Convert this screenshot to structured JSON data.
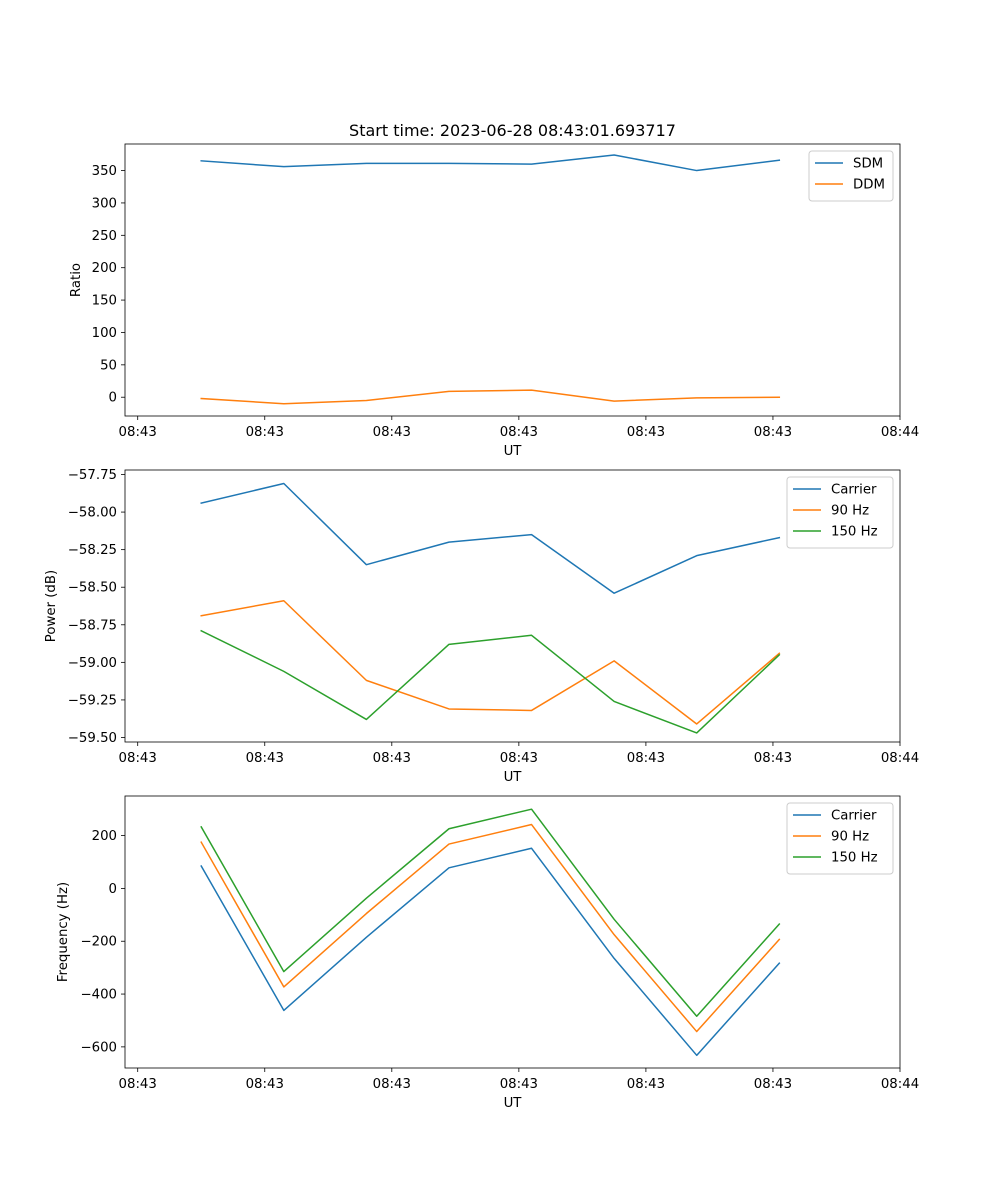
{
  "title": "Start time: 2023-06-28 08:43:01.693717",
  "x_tick_labels": [
    "08:43",
    "08:43",
    "08:43",
    "08:43",
    "08:43",
    "08:43",
    "08:44"
  ],
  "colors": {
    "blue": "#1f77b4",
    "orange": "#ff7f0e",
    "green": "#2ca02c"
  },
  "chart_data": [
    {
      "type": "line",
      "title": "Start time: 2023-06-28 08:43:01.693717",
      "xlabel": "UT",
      "ylabel": "Ratio",
      "ylim": [
        -29,
        391
      ],
      "yticks": [
        0,
        50,
        100,
        150,
        200,
        250,
        300,
        350
      ],
      "x_ticks": [
        0,
        1,
        2,
        3,
        4,
        5,
        6
      ],
      "xlim": [
        -0.1,
        6.0
      ],
      "x": [
        0.5,
        1.15,
        1.8,
        2.45,
        3.1,
        3.75,
        4.4,
        5.05
      ],
      "legend_position": "upper-right",
      "series": [
        {
          "name": "SDM",
          "color": "#1f77b4",
          "values": [
            365,
            356,
            361,
            361,
            360,
            374,
            350,
            366
          ]
        },
        {
          "name": "DDM",
          "color": "#ff7f0e",
          "values": [
            -2,
            -10,
            -5,
            9,
            11,
            -6,
            -1,
            0
          ]
        }
      ]
    },
    {
      "type": "line",
      "xlabel": "UT",
      "ylabel": "Power (dB)",
      "ylim": [
        -59.53,
        -57.72
      ],
      "yticks": [
        -59.5,
        -59.25,
        -59.0,
        -58.75,
        -58.5,
        -58.25,
        -58.0,
        -57.75
      ],
      "ytick_labels": [
        "−59.50",
        "−59.25",
        "−59.00",
        "−58.75",
        "−58.50",
        "−58.25",
        "−58.00",
        "−57.75"
      ],
      "x_ticks": [
        0,
        1,
        2,
        3,
        4,
        5,
        6
      ],
      "xlim": [
        -0.1,
        6.0
      ],
      "x": [
        0.5,
        1.15,
        1.8,
        2.45,
        3.1,
        3.75,
        4.4,
        5.05
      ],
      "legend_position": "upper-right",
      "series": [
        {
          "name": "Carrier",
          "color": "#1f77b4",
          "values": [
            -57.94,
            -57.81,
            -58.35,
            -58.2,
            -58.15,
            -58.54,
            -58.29,
            -58.17
          ]
        },
        {
          "name": "90 Hz",
          "color": "#ff7f0e",
          "values": [
            -58.69,
            -58.59,
            -59.12,
            -59.31,
            -59.32,
            -58.99,
            -59.41,
            -58.94
          ]
        },
        {
          "name": "150 Hz",
          "color": "#2ca02c",
          "values": [
            -58.79,
            -59.06,
            -59.38,
            -58.88,
            -58.82,
            -59.26,
            -59.47,
            -58.95
          ]
        }
      ]
    },
    {
      "type": "line",
      "xlabel": "UT",
      "ylabel": "Frequency (Hz)",
      "ylim": [
        -680,
        350
      ],
      "yticks": [
        -600,
        -400,
        -200,
        0,
        200
      ],
      "ytick_labels": [
        "−600",
        "−400",
        "−200",
        "0",
        "200"
      ],
      "x_ticks": [
        0,
        1,
        2,
        3,
        4,
        5,
        6
      ],
      "xlim": [
        -0.1,
        6.0
      ],
      "x": [
        0.5,
        1.15,
        1.8,
        2.45,
        3.1,
        3.75,
        4.4,
        5.05
      ],
      "legend_position": "upper-right",
      "series": [
        {
          "name": "Carrier",
          "color": "#1f77b4",
          "values": [
            85,
            -462,
            -185,
            78,
            152,
            -265,
            -632,
            -283
          ]
        },
        {
          "name": "90 Hz",
          "color": "#ff7f0e",
          "values": [
            175,
            -373,
            -95,
            168,
            242,
            -175,
            -542,
            -193
          ]
        },
        {
          "name": "150 Hz",
          "color": "#2ca02c",
          "values": [
            233,
            -315,
            -37,
            226,
            300,
            -117,
            -484,
            -135
          ]
        }
      ]
    }
  ]
}
